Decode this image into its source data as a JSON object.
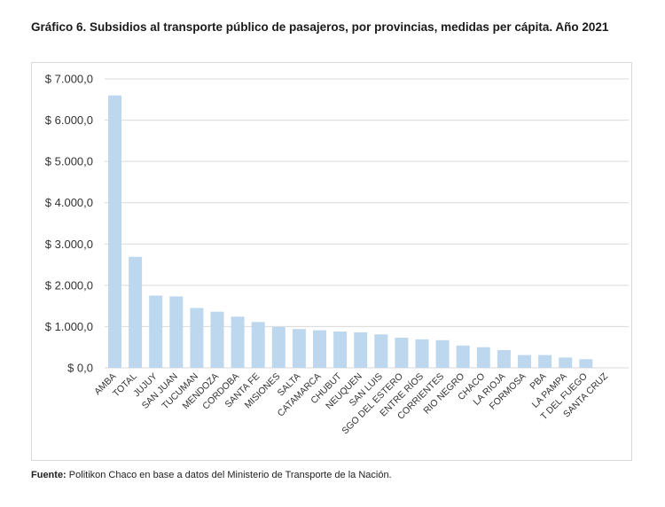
{
  "title": "Gráfico 6. Subsidios al transporte público de pasajeros, por provincias, medidas per cápita. Año 2021",
  "source": {
    "label": "Fuente:",
    "text": " Politikon Chaco en base a datos del Ministerio de Transporte de la Nación."
  },
  "chart_data": {
    "type": "bar",
    "title": "Gráfico 6. Subsidios al transporte público de pasajeros, por provincias, medidas per cápita. Año 2021",
    "xlabel": "",
    "ylabel": "",
    "ylim": [
      0,
      7000
    ],
    "grid": true,
    "bar_color": "#bdd7ee",
    "yticks": [
      0,
      1000,
      2000,
      3000,
      4000,
      5000,
      6000,
      7000
    ],
    "ytick_labels": [
      "$ 0,0",
      "$ 1.000,0",
      "$ 2.000,0",
      "$ 3.000,0",
      "$ 4.000,0",
      "$ 5.000,0",
      "$ 6.000,0",
      "$ 7.000,0"
    ],
    "categories": [
      "AMBA",
      "TOTAL",
      "JUJUY",
      "SAN JUAN",
      "TUCUMAN",
      "MENDOZA",
      "CORDOBA",
      "SANTA FE",
      "MISIONES",
      "SALTA",
      "CATAMARCA",
      "CHUBUT",
      "NEUQUEN",
      "SAN LUIS",
      "SGO DEL ESTERO",
      "ENTRE RÍOS",
      "CORRIENTES",
      "RIO NEGRO",
      "CHACO",
      "LA RIOJA",
      "FORMOSA",
      "PBA",
      "LA PAMPA",
      "T DEL FUEGO",
      "SANTA CRUZ"
    ],
    "values": [
      6600,
      2690,
      1750,
      1730,
      1450,
      1360,
      1240,
      1110,
      990,
      940,
      910,
      880,
      860,
      810,
      730,
      690,
      670,
      540,
      500,
      430,
      310,
      310,
      250,
      210,
      0
    ]
  }
}
